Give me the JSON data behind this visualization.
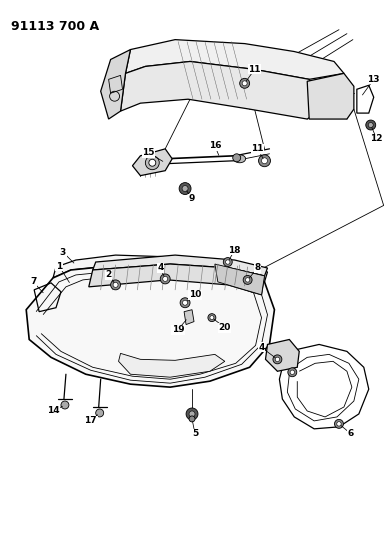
{
  "title": "91113 700 A",
  "bg": "#ffffff",
  "lc": "#000000",
  "fig_w": 3.91,
  "fig_h": 5.33,
  "dpi": 100,
  "title_fs": 9,
  "label_fs": 6.5
}
